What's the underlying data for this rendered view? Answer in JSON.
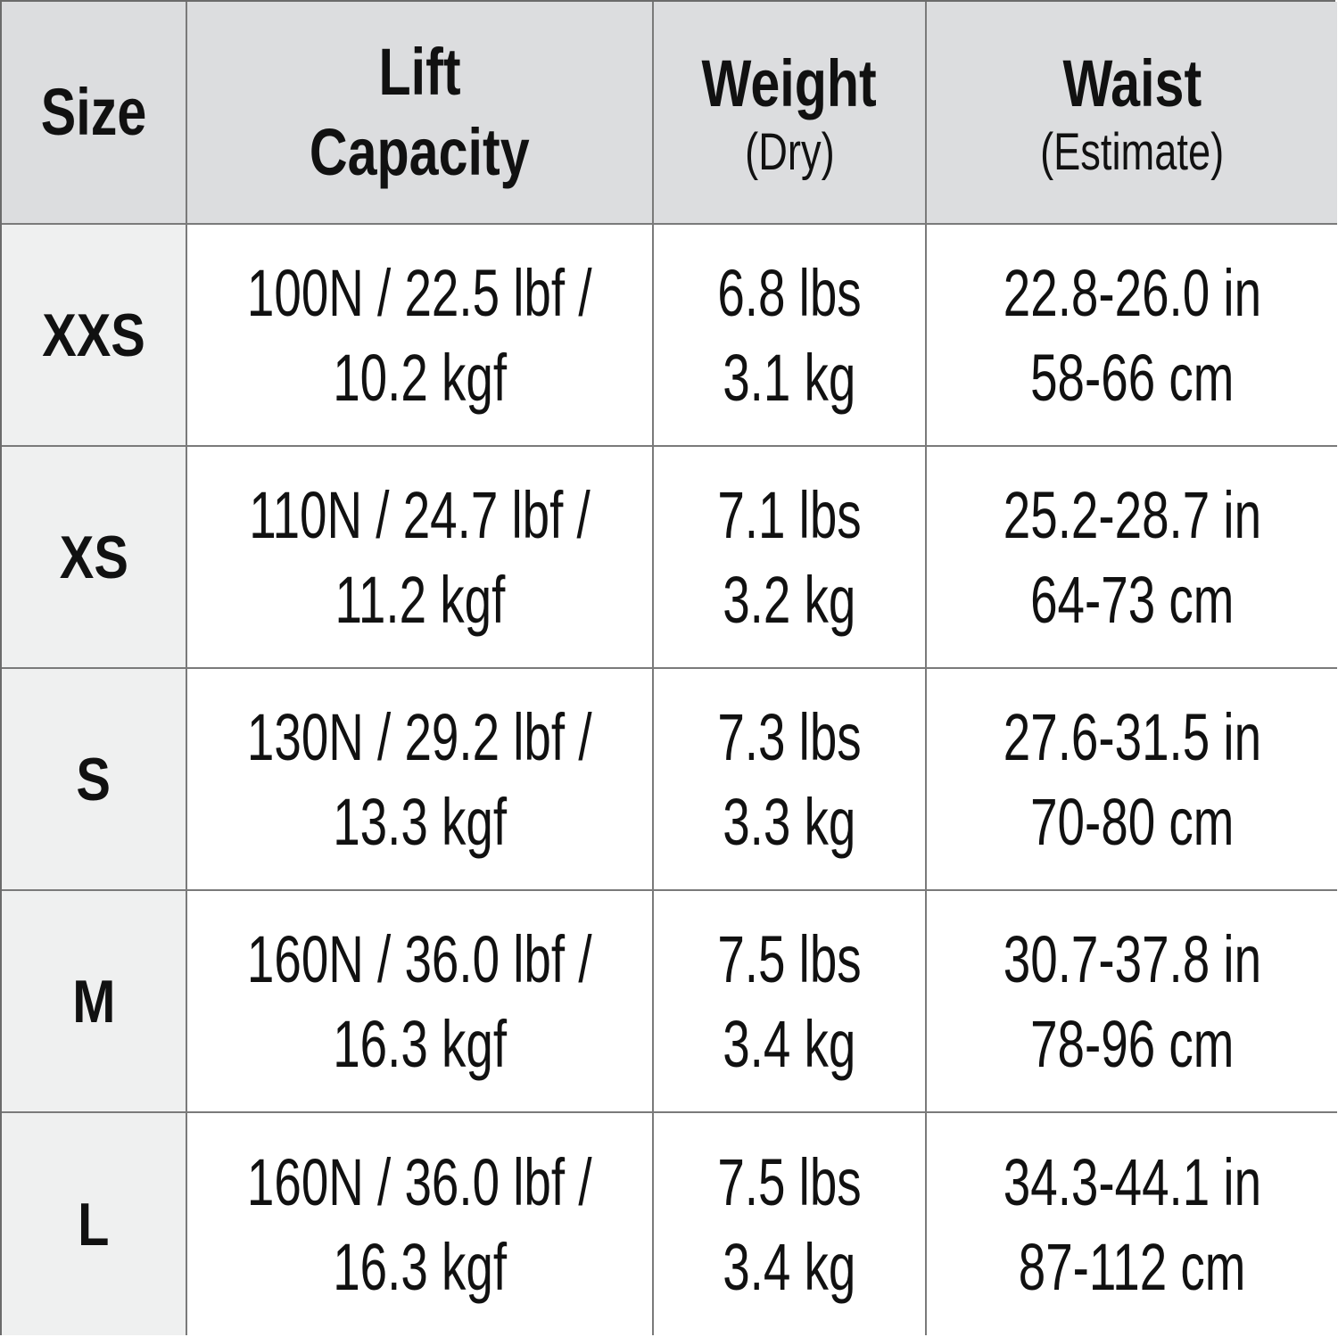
{
  "table": {
    "header": [
      {
        "lines": [
          "Size"
        ]
      },
      {
        "lines": [
          "Lift",
          "Capacity"
        ]
      },
      {
        "lines": [
          "Weight"
        ],
        "note": "(Dry)"
      },
      {
        "lines": [
          "Waist"
        ],
        "note": "(Estimate)"
      }
    ],
    "rows": [
      {
        "size": "XXS",
        "lift": [
          "100N / 22.5 lbf /",
          "10.2 kgf"
        ],
        "weight": [
          "6.8 lbs",
          "3.1 kg"
        ],
        "waist": [
          "22.8-26.0 in",
          "58-66 cm"
        ]
      },
      {
        "size": "XS",
        "lift": [
          "110N / 24.7 lbf /",
          "11.2 kgf"
        ],
        "weight": [
          "7.1 lbs",
          "3.2 kg"
        ],
        "waist": [
          "25.2-28.7 in",
          "64-73 cm"
        ]
      },
      {
        "size": "S",
        "lift": [
          "130N / 29.2 lbf /",
          "13.3 kgf"
        ],
        "weight": [
          "7.3 lbs",
          "3.3 kg"
        ],
        "waist": [
          "27.6-31.5 in",
          "70-80 cm"
        ]
      },
      {
        "size": "M",
        "lift": [
          "160N / 36.0 lbf /",
          "16.3 kgf"
        ],
        "weight": [
          "7.5 lbs",
          "3.4 kg"
        ],
        "waist": [
          "30.7-37.8 in",
          "78-96 cm"
        ]
      },
      {
        "size": "L",
        "lift": [
          "160N / 36.0 lbf /",
          "16.3 kgf"
        ],
        "weight": [
          "7.5 lbs",
          "3.4 kg"
        ],
        "waist": [
          "34.3-44.1 in",
          "87-112 cm"
        ]
      }
    ]
  }
}
